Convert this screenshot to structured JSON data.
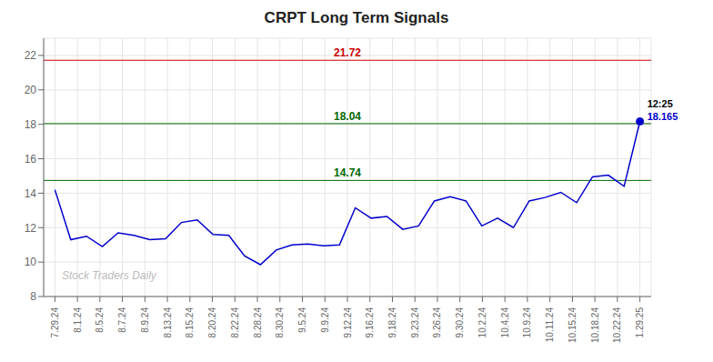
{
  "chart_data": {
    "type": "line",
    "title": "CRPT Long Term Signals",
    "watermark": "Stock Traders Daily",
    "x": [
      0,
      0.702703,
      1.405405,
      2.108108,
      2.810811,
      3.513514,
      4.216216,
      4.918919,
      5.621622,
      6.324324,
      7.027027,
      7.72973,
      8.432432,
      9.135135,
      9.837838,
      10.540541,
      11.243243,
      11.945946,
      12.648649,
      13.351351,
      14.054054,
      14.756757,
      15.459459,
      16.162162,
      16.864865,
      17.567568,
      18.27027,
      18.972973,
      19.675676,
      20.378378,
      21.081081,
      21.783784,
      22.486486,
      23.189189,
      23.891892,
      24.594595,
      25.297297,
      26
    ],
    "values": [
      14.2,
      11.3,
      11.5,
      10.9,
      11.7,
      11.55,
      11.3,
      11.35,
      12.3,
      12.45,
      11.6,
      11.55,
      10.35,
      9.85,
      10.7,
      11.0,
      11.05,
      10.95,
      11.0,
      13.15,
      12.55,
      12.65,
      11.9,
      12.1,
      13.55,
      13.8,
      13.55,
      12.1,
      12.55,
      12.0,
      13.55,
      13.75,
      14.05,
      13.45,
      14.95,
      15.05,
      14.4,
      18.165
    ],
    "color": "#0000cc",
    "xlim": [
      -0.5,
      26.5
    ],
    "xticks": [
      {
        "value": 0,
        "label": "7.29.24"
      },
      {
        "value": 1,
        "label": "8.1.24"
      },
      {
        "value": 2,
        "label": "8.5.24"
      },
      {
        "value": 3,
        "label": "8.7.24"
      },
      {
        "value": 4,
        "label": "8.9.24"
      },
      {
        "value": 5,
        "label": "8.13.24"
      },
      {
        "value": 6,
        "label": "8.15.24"
      },
      {
        "value": 7,
        "label": "8.20.24"
      },
      {
        "value": 8,
        "label": "8.22.24"
      },
      {
        "value": 9,
        "label": "8.28.24"
      },
      {
        "value": 10,
        "label": "8.30.24"
      },
      {
        "value": 11,
        "label": "9.5.24"
      },
      {
        "value": 12,
        "label": "9.9.24"
      },
      {
        "value": 13,
        "label": "9.12.24"
      },
      {
        "value": 14,
        "label": "9.16.24"
      },
      {
        "value": 15,
        "label": "9.18.24"
      },
      {
        "value": 16,
        "label": "9.23.24"
      },
      {
        "value": 17,
        "label": "9.26.24"
      },
      {
        "value": 18,
        "label": "9.30.24"
      },
      {
        "value": 19,
        "label": "10.2.24"
      },
      {
        "value": 20,
        "label": "10.4.24"
      },
      {
        "value": 21,
        "label": "10.9.24"
      },
      {
        "value": 22,
        "label": "10.11.24"
      },
      {
        "value": 23,
        "label": "10.15.24"
      },
      {
        "value": 24,
        "label": "10.18.24"
      },
      {
        "value": 25,
        "label": "10.22.24"
      },
      {
        "value": 26,
        "label": "1.29.25"
      }
    ],
    "ylim": [
      8,
      23
    ],
    "yticks": [
      8,
      10,
      12,
      14,
      16,
      18,
      20,
      22
    ],
    "grid": true,
    "reference_lines": [
      {
        "y": 21.72,
        "label": "21.72",
        "color": "#cc0000"
      },
      {
        "y": 18.04,
        "label": "18.04",
        "color": "#006600"
      },
      {
        "y": 14.74,
        "label": "14.74",
        "color": "#006600"
      }
    ],
    "annotations": [
      "12:25",
      "18.165"
    ]
  }
}
